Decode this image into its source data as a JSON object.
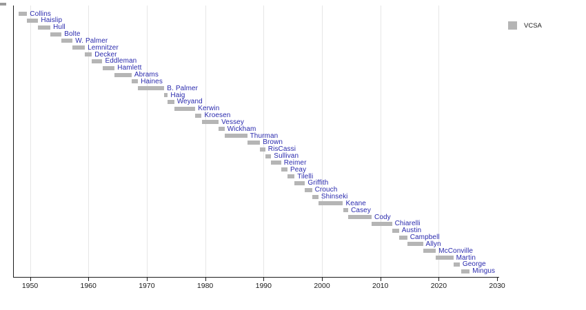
{
  "colors": {
    "bar_gray": "#b5b5b5",
    "label_blue": "#2929ad",
    "axis": "#1a1a1a",
    "gridline": "#e6e6e6"
  },
  "legend": {
    "label": "VCSA",
    "swatch_color": "#b5b5b5",
    "position": "top-right"
  },
  "chart_data": {
    "type": "bar",
    "subtype": "horizontal-range-timeline",
    "title": "",
    "xlabel": "",
    "ylabel": "",
    "x_axis": {
      "range": [
        1947.2,
        2031.5
      ],
      "tick_years": [
        1950,
        1960,
        1970,
        1980,
        1990,
        2000,
        2010,
        2020,
        2030
      ],
      "tick_labels": [
        "1950",
        "1960",
        "1970",
        "1980",
        "1990",
        "2000",
        "2010",
        "2020",
        "2030"
      ],
      "gridlines_at": [
        1950,
        1960,
        1970,
        1980,
        1990,
        2000,
        2010,
        2020
      ],
      "grid": true
    },
    "legend_entries": [
      {
        "label": "VCSA",
        "color": "#b5b5b5"
      }
    ],
    "series": [
      {
        "name": "Collins",
        "start": 1948.1,
        "end": 1949.5
      },
      {
        "name": "Haislip",
        "start": 1949.5,
        "end": 1951.4
      },
      {
        "name": "Hull",
        "start": 1951.4,
        "end": 1953.5
      },
      {
        "name": "Bolte",
        "start": 1953.5,
        "end": 1955.4
      },
      {
        "name": "W. Palmer",
        "start": 1955.4,
        "end": 1957.3
      },
      {
        "name": "Lemnitzer",
        "start": 1957.3,
        "end": 1959.4
      },
      {
        "name": "Decker",
        "start": 1959.4,
        "end": 1960.6
      },
      {
        "name": "Eddleman",
        "start": 1960.6,
        "end": 1962.4
      },
      {
        "name": "Hamlett",
        "start": 1962.4,
        "end": 1964.5
      },
      {
        "name": "Abrams",
        "start": 1964.5,
        "end": 1967.4
      },
      {
        "name": "Haines",
        "start": 1967.4,
        "end": 1968.5
      },
      {
        "name": "B. Palmer",
        "start": 1968.5,
        "end": 1973.0
      },
      {
        "name": "Haig",
        "start": 1973.0,
        "end": 1973.6
      },
      {
        "name": "Weyand",
        "start": 1973.6,
        "end": 1974.7
      },
      {
        "name": "Kerwin",
        "start": 1974.7,
        "end": 1978.3
      },
      {
        "name": "Kroesen",
        "start": 1978.3,
        "end": 1979.4
      },
      {
        "name": "Vessey",
        "start": 1979.4,
        "end": 1982.3
      },
      {
        "name": "Wickham",
        "start": 1982.3,
        "end": 1983.3
      },
      {
        "name": "Thurman",
        "start": 1983.3,
        "end": 1987.2
      },
      {
        "name": "Brown",
        "start": 1987.2,
        "end": 1989.4
      },
      {
        "name": "RisCassi",
        "start": 1989.4,
        "end": 1990.3
      },
      {
        "name": "Sullivan",
        "start": 1990.3,
        "end": 1991.3
      },
      {
        "name": "Reimer",
        "start": 1991.3,
        "end": 1993.0
      },
      {
        "name": "Peay",
        "start": 1993.0,
        "end": 1994.1
      },
      {
        "name": "Tilelli",
        "start": 1994.1,
        "end": 1995.3
      },
      {
        "name": "Griffith",
        "start": 1995.3,
        "end": 1997.1
      },
      {
        "name": "Crouch",
        "start": 1997.1,
        "end": 1998.3
      },
      {
        "name": "Shinseki",
        "start": 1998.3,
        "end": 1999.4
      },
      {
        "name": "Keane",
        "start": 1999.4,
        "end": 2003.6
      },
      {
        "name": "Casey",
        "start": 2003.6,
        "end": 2004.5
      },
      {
        "name": "Cody",
        "start": 2004.5,
        "end": 2008.5
      },
      {
        "name": "Chiarelli",
        "start": 2008.5,
        "end": 2012.0
      },
      {
        "name": "Austin",
        "start": 2012.0,
        "end": 2013.2
      },
      {
        "name": "Campbell",
        "start": 2013.2,
        "end": 2014.6
      },
      {
        "name": "Allyn",
        "start": 2014.6,
        "end": 2017.3
      },
      {
        "name": "McConville",
        "start": 2017.3,
        "end": 2019.5
      },
      {
        "name": "Martin",
        "start": 2019.5,
        "end": 2022.5
      },
      {
        "name": "George",
        "start": 2022.5,
        "end": 2023.6
      },
      {
        "name": "Mingus",
        "start": 2023.9,
        "end": 2025.3
      }
    ]
  }
}
